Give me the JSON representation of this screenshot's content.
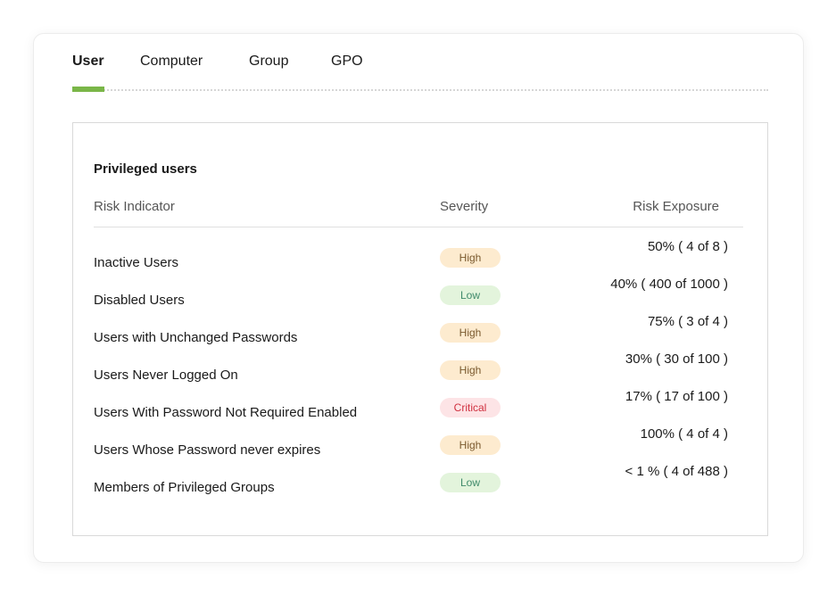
{
  "tabs": [
    {
      "label": "User",
      "active": true
    },
    {
      "label": "Computer"
    },
    {
      "label": "Group"
    },
    {
      "label": "GPO"
    }
  ],
  "accent": "#7ab648",
  "panel": {
    "title": "Privileged users",
    "columns": [
      "Risk Indicator",
      "Severity",
      "Risk Exposure"
    ]
  },
  "severity_colors": {
    "High": {
      "bg": "#fdebcf",
      "fg": "#7a5a2e"
    },
    "Low": {
      "bg": "#e3f4dc",
      "fg": "#3f8a6a"
    },
    "Critical": {
      "bg": "#fde4e6",
      "fg": "#d0303f"
    }
  },
  "rows": [
    {
      "indicator": "Inactive Users",
      "severity": "High",
      "exposure": "50% ( 4 of 8 )"
    },
    {
      "indicator": "Disabled Users",
      "severity": "Low",
      "exposure": "40% ( 400 of 1000 )"
    },
    {
      "indicator": "Users with Unchanged Passwords",
      "severity": "High",
      "exposure": "75% ( 3 of 4 )"
    },
    {
      "indicator": "Users Never Logged On",
      "severity": "High",
      "exposure": "30% ( 30 of 100 )"
    },
    {
      "indicator": "Users With Password Not Required Enabled",
      "severity": "Critical",
      "exposure": "17% ( 17 of 100 )"
    },
    {
      "indicator": "Users Whose Password never expires",
      "severity": "High",
      "exposure": "100% ( 4 of 4 )"
    },
    {
      "indicator": "Members of Privileged Groups",
      "severity": "Low",
      "exposure": "< 1 % ( 4 of 488 )"
    }
  ]
}
